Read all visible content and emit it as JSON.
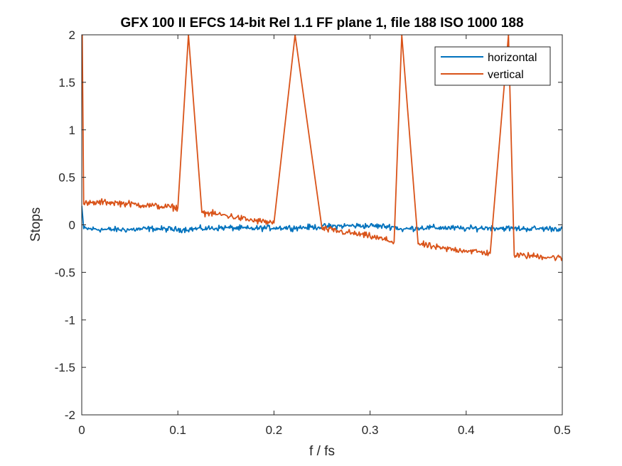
{
  "chart_data": {
    "type": "line",
    "title": "GFX 100 II EFCS 14-bit Rel 1.1 FF plane 1, file 188 ISO 1000 188",
    "xlabel": "f / fs",
    "ylabel": "Stops",
    "xlim": [
      0,
      0.5
    ],
    "ylim": [
      -2,
      2
    ],
    "x_ticks": [
      "0",
      "0.1",
      "0.2",
      "0.3",
      "0.4",
      "0.5"
    ],
    "y_ticks": [
      "2",
      "1.5",
      "1",
      "0.5",
      "0",
      "-0.5",
      "-1",
      "-1.5",
      "-2"
    ],
    "grid": false,
    "legend_position": "top-right",
    "series": [
      {
        "name": "horizontal",
        "color": "#0072BD",
        "x": [
          0,
          0.002,
          0.025,
          0.05,
          0.075,
          0.1,
          0.125,
          0.15,
          0.175,
          0.2,
          0.225,
          0.25,
          0.275,
          0.3,
          0.325,
          0.333,
          0.35,
          0.375,
          0.4,
          0.425,
          0.45,
          0.475,
          0.5
        ],
        "y": [
          0.2,
          -0.04,
          -0.05,
          -0.05,
          -0.04,
          -0.05,
          -0.04,
          -0.03,
          -0.04,
          -0.03,
          -0.03,
          -0.02,
          -0.01,
          -0.01,
          -0.02,
          -0.05,
          -0.03,
          -0.03,
          -0.04,
          -0.03,
          -0.04,
          -0.04,
          -0.04
        ]
      },
      {
        "name": "vertical",
        "color": "#D95319",
        "x": [
          0,
          0.0005,
          0.002,
          0.025,
          0.05,
          0.075,
          0.1,
          0.111,
          0.125,
          0.15,
          0.175,
          0.2,
          0.222,
          0.25,
          0.275,
          0.3,
          0.325,
          0.333,
          0.35,
          0.375,
          0.4,
          0.425,
          0.444,
          0.45,
          0.475,
          0.5
        ],
        "y": [
          2,
          2,
          0.22,
          0.24,
          0.22,
          0.2,
          0.18,
          2,
          0.13,
          0.1,
          0.05,
          0.02,
          2,
          -0.04,
          -0.08,
          -0.12,
          -0.18,
          2,
          -0.2,
          -0.25,
          -0.27,
          -0.3,
          2,
          -0.32,
          -0.33,
          -0.35
        ]
      }
    ]
  }
}
